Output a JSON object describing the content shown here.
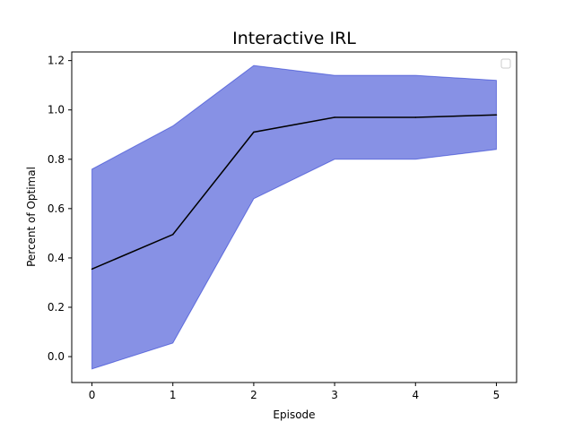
{
  "chart_data": {
    "type": "line",
    "title": "Interactive IRL",
    "xlabel": "Episode",
    "ylabel": "Percent of Optimal",
    "x": [
      0,
      1,
      2,
      3,
      4,
      5
    ],
    "series": [
      {
        "values": [
          0.355,
          0.495,
          0.91,
          0.97,
          0.97,
          0.98
        ],
        "lower": [
          -0.05,
          0.055,
          0.64,
          0.8,
          0.8,
          0.84
        ],
        "upper": [
          0.76,
          0.935,
          1.18,
          1.14,
          1.14,
          1.12
        ],
        "color": "#000000",
        "band_color": "#0f23cc"
      }
    ],
    "xticks": [
      "0",
      "1",
      "2",
      "3",
      "4",
      "5"
    ],
    "yticks": [
      "0.0",
      "0.2",
      "0.4",
      "0.6",
      "0.8",
      "1.0",
      "1.2"
    ],
    "xlim": [
      -0.25,
      5.25
    ],
    "ylim": [
      -0.105,
      1.235
    ],
    "grid": false,
    "legend": {
      "placement": "top-right",
      "entries": []
    }
  }
}
